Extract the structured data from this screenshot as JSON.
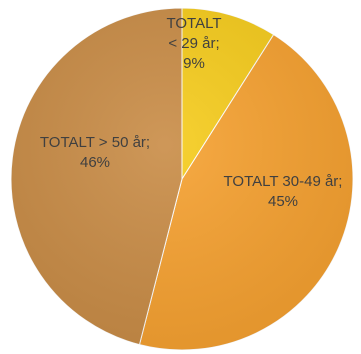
{
  "chart_data": {
    "type": "pie",
    "title": "",
    "slices": [
      {
        "label_lines": [
          "TOTALT",
          "< 29 år;",
          "9%"
        ],
        "label": "TOTALT < 29 år",
        "value": 9,
        "color": "#f6cc1c"
      },
      {
        "label_lines": [
          "TOTALT 30-49 år;",
          "45%"
        ],
        "label": "TOTALT 30-49 år",
        "value": 45,
        "color": "#f6a130"
      },
      {
        "label_lines": [
          "TOTALT > 50 år;",
          "46%"
        ],
        "label": "TOTALT > 50 år",
        "value": 46,
        "color": "#c98c46"
      }
    ]
  }
}
